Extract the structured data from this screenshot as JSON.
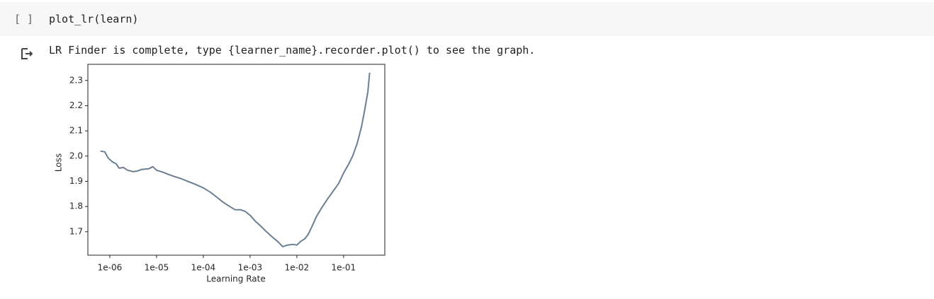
{
  "cell": {
    "prompt": "[ ]",
    "code": "plot_lr(learn)"
  },
  "output": {
    "text": "LR Finder is complete, type {learner_name}.recorder.plot() to see the graph."
  },
  "chart_data": {
    "type": "line",
    "xlabel": "Learning Rate",
    "ylabel": "Loss",
    "xscale": "log",
    "x": [
      6.3e-07,
      7.8e-07,
      9.3e-07,
      1.12e-06,
      1.38e-06,
      1.58e-06,
      1.95e-06,
      2.4e-06,
      3.16e-06,
      3.9e-06,
      4.8e-06,
      6.8e-06,
      8.3e-06,
      1e-05,
      1.38e-05,
      1.82e-05,
      2.4e-05,
      3.4e-05,
      4.8e-05,
      6.8e-05,
      0.0001,
      0.000141,
      0.000195,
      0.00026,
      0.00036,
      0.00048,
      0.00063,
      0.00078,
      0.001,
      0.00129,
      0.0017,
      0.00224,
      0.00295,
      0.0039,
      0.005,
      0.0063,
      0.0081,
      0.01,
      0.012,
      0.0148,
      0.0174,
      0.021,
      0.026,
      0.034,
      0.045,
      0.059,
      0.078,
      0.1,
      0.129,
      0.158,
      0.195,
      0.24,
      0.28,
      0.33,
      0.36
    ],
    "series": [
      {
        "color": "#6b7f92",
        "values": [
          2.02,
          2.017,
          1.992,
          1.978,
          1.969,
          1.952,
          1.955,
          1.944,
          1.938,
          1.941,
          1.947,
          1.95,
          1.958,
          1.944,
          1.936,
          1.927,
          1.919,
          1.91,
          1.899,
          1.888,
          1.874,
          1.857,
          1.837,
          1.818,
          1.801,
          1.787,
          1.787,
          1.781,
          1.765,
          1.742,
          1.722,
          1.7,
          1.68,
          1.661,
          1.641,
          1.647,
          1.65,
          1.647,
          1.661,
          1.672,
          1.689,
          1.72,
          1.759,
          1.795,
          1.829,
          1.86,
          1.891,
          1.933,
          1.969,
          2.003,
          2.05,
          2.115,
          2.179,
          2.255,
          2.331
        ]
      }
    ],
    "xlim": [
      3.4e-07,
      0.76
    ],
    "ylim": [
      1.607,
      2.364
    ],
    "xticks": [
      {
        "value": 1e-06,
        "label": "1e-06"
      },
      {
        "value": 1e-05,
        "label": "1e-05"
      },
      {
        "value": 0.0001,
        "label": "1e-04"
      },
      {
        "value": 0.001,
        "label": "1e-03"
      },
      {
        "value": 0.01,
        "label": "1e-02"
      },
      {
        "value": 0.1,
        "label": "1e-01"
      }
    ],
    "yticks": [
      1.7,
      1.8,
      1.9,
      {
        "value": 2,
        "label": "2.0"
      },
      2.1,
      2.2,
      2.3
    ]
  }
}
